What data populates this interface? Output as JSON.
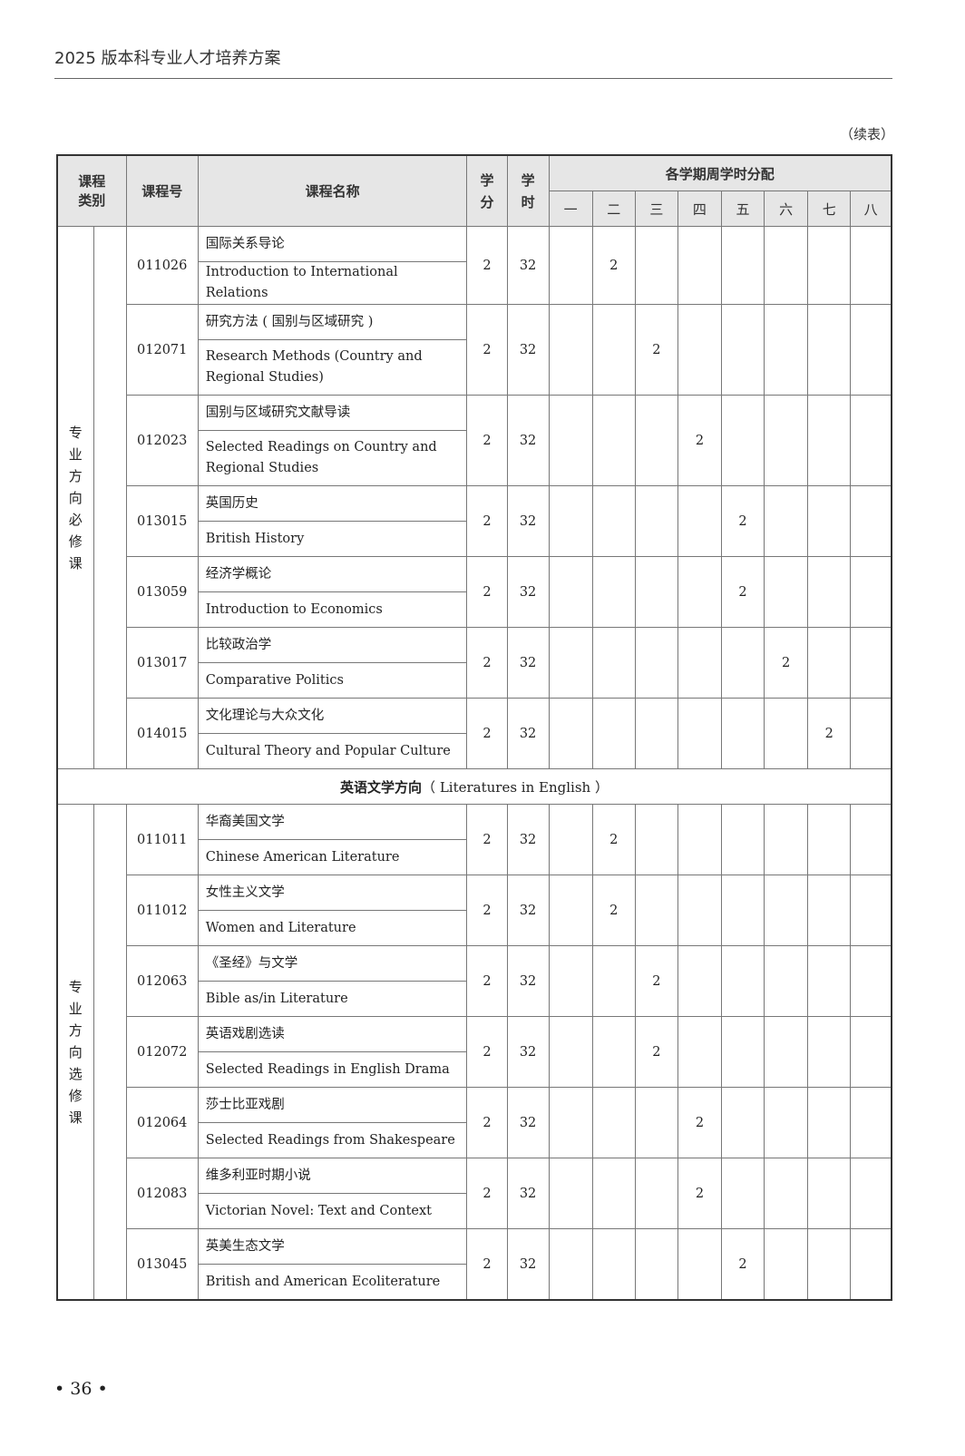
{
  "running_head": "2025 版本科专业人才培养方案",
  "continued_label": "（续表）",
  "page_number": "• 36 •",
  "header": {
    "category": "课程类别",
    "code": "课程号",
    "name": "课程名称",
    "credits": "学分",
    "hours": "学时",
    "semester_group": "各学期周学时分配",
    "semesters": [
      "一",
      "二",
      "三",
      "四",
      "五",
      "六",
      "七",
      "八"
    ]
  },
  "groups": [
    {
      "category": "专业方向必修课",
      "courses": [
        {
          "code": "011026",
          "cn": "国际关系导论",
          "en": "Introduction to International Relations",
          "credits": "2",
          "hours": "32",
          "sem": [
            "",
            "2",
            "",
            "",
            "",
            "",
            "",
            ""
          ]
        },
        {
          "code": "012071",
          "cn": "研究方法 ( 国别与区域研究 )",
          "en": "Research Methods (Country and Regional Studies)",
          "credits": "2",
          "hours": "32",
          "sem": [
            "",
            "",
            "2",
            "",
            "",
            "",
            "",
            ""
          ],
          "tall": true
        },
        {
          "code": "012023",
          "cn": "国别与区域研究文献导读",
          "en": "Selected Readings on Country and Regional Studies",
          "credits": "2",
          "hours": "32",
          "sem": [
            "",
            "",
            "",
            "2",
            "",
            "",
            "",
            ""
          ],
          "tall": true
        },
        {
          "code": "013015",
          "cn": "英国历史",
          "en": "British History",
          "credits": "2",
          "hours": "32",
          "sem": [
            "",
            "",
            "",
            "",
            "2",
            "",
            "",
            ""
          ]
        },
        {
          "code": "013059",
          "cn": "经济学概论",
          "en": "Introduction to Economics",
          "credits": "2",
          "hours": "32",
          "sem": [
            "",
            "",
            "",
            "",
            "2",
            "",
            "",
            ""
          ]
        },
        {
          "code": "013017",
          "cn": "比较政治学",
          "en": "Comparative Politics",
          "credits": "2",
          "hours": "32",
          "sem": [
            "",
            "",
            "",
            "",
            "",
            "2",
            "",
            ""
          ]
        },
        {
          "code": "014015",
          "cn": "文化理论与大众文化",
          "en": "Cultural Theory and Popular Culture",
          "credits": "2",
          "hours": "32",
          "sem": [
            "",
            "",
            "",
            "",
            "",
            "",
            "2",
            ""
          ]
        }
      ]
    },
    {
      "section_cn": "英语文学方向",
      "section_en": "（ Literatures in English ）",
      "category": "专业方向选修课",
      "courses": [
        {
          "code": "011011",
          "cn": "华裔美国文学",
          "en": "Chinese American Literature",
          "credits": "2",
          "hours": "32",
          "sem": [
            "",
            "2",
            "",
            "",
            "",
            "",
            "",
            ""
          ]
        },
        {
          "code": "011012",
          "cn": "女性主义文学",
          "en": "Women and Literature",
          "credits": "2",
          "hours": "32",
          "sem": [
            "",
            "2",
            "",
            "",
            "",
            "",
            "",
            ""
          ]
        },
        {
          "code": "012063",
          "cn": "《圣经》与文学",
          "en": "Bible as/in Literature",
          "credits": "2",
          "hours": "32",
          "sem": [
            "",
            "",
            "2",
            "",
            "",
            "",
            "",
            ""
          ]
        },
        {
          "code": "012072",
          "cn": "英语戏剧选读",
          "en": "Selected Readings in English Drama",
          "credits": "2",
          "hours": "32",
          "sem": [
            "",
            "",
            "2",
            "",
            "",
            "",
            "",
            ""
          ]
        },
        {
          "code": "012064",
          "cn": "莎士比亚戏剧",
          "en": "Selected Readings from Shakespeare",
          "credits": "2",
          "hours": "32",
          "sem": [
            "",
            "",
            "",
            "2",
            "",
            "",
            "",
            ""
          ]
        },
        {
          "code": "012083",
          "cn": "维多利亚时期小说",
          "en": "Victorian Novel: Text and Context",
          "credits": "2",
          "hours": "32",
          "sem": [
            "",
            "",
            "",
            "2",
            "",
            "",
            "",
            ""
          ]
        },
        {
          "code": "013045",
          "cn": "英美生态文学",
          "en": "British and American Ecoliterature",
          "credits": "2",
          "hours": "32",
          "sem": [
            "",
            "",
            "",
            "",
            "2",
            "",
            "",
            ""
          ]
        }
      ]
    }
  ]
}
